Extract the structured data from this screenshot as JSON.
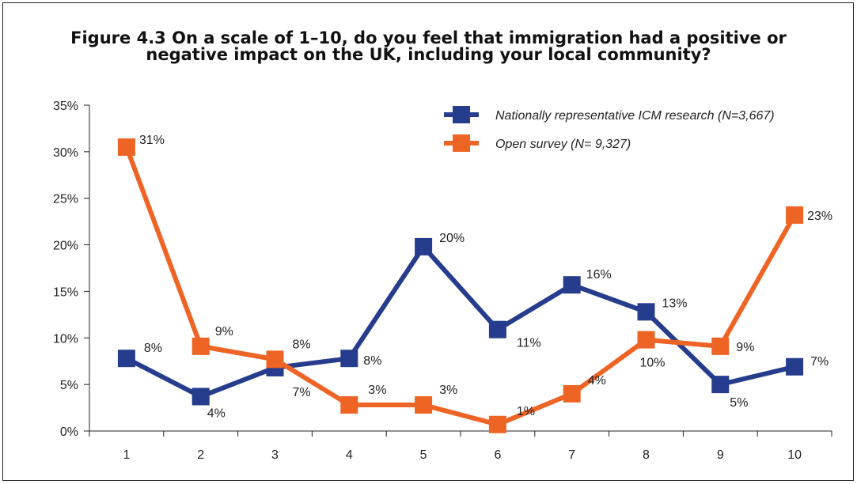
{
  "chart_data": {
    "type": "line",
    "title_line1": "Figure 4.3 On a scale of 1–10, do you feel that immigration had a positive or",
    "title_line2": "negative impact on the UK, including your local community?",
    "categories": [
      "1",
      "2",
      "3",
      "4",
      "5",
      "6",
      "7",
      "8",
      "9",
      "10"
    ],
    "y_ticks": [
      "0%",
      "5%",
      "10%",
      "15%",
      "20%",
      "25%",
      "30%",
      "35%"
    ],
    "ylim": [
      0,
      35
    ],
    "legend_position": "top-right",
    "series": [
      {
        "name": "Nationally representative ICM research (N=3,667)",
        "color": "#263c8d",
        "values": [
          7.8,
          3.7,
          6.8,
          7.8,
          19.8,
          10.9,
          15.7,
          12.8,
          5.0,
          6.9
        ],
        "labels": [
          "8%",
          "4%",
          "7%",
          "8%",
          "20%",
          "11%",
          "16%",
          "13%",
          "5%",
          "7%"
        ]
      },
      {
        "name": "Open survey (N= 9,327)",
        "color": "#ee6425",
        "values": [
          30.5,
          9.1,
          7.7,
          2.8,
          2.8,
          0.7,
          4.0,
          9.8,
          9.1,
          23.2
        ],
        "labels": [
          "31%",
          "9%",
          "8%",
          "3%",
          "3%",
          "1%",
          "4%",
          "10%",
          "9%",
          "23%"
        ]
      }
    ]
  }
}
